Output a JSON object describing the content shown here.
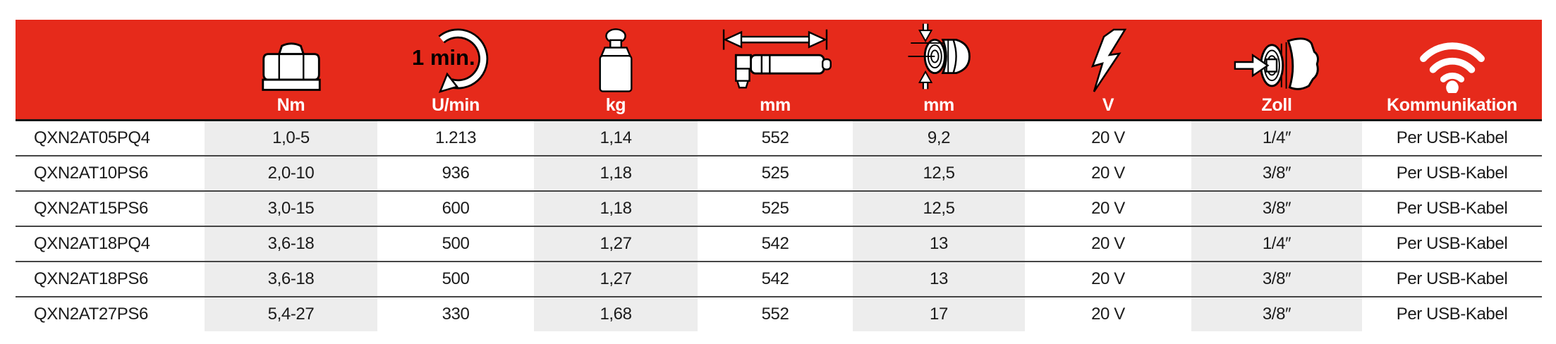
{
  "colors": {
    "header_red": "#e62a1b",
    "shaded_cell": "#ededed",
    "row_border": "#454545",
    "text": "#1b1b1b"
  },
  "rotation_icon_label": "1 min.",
  "table": {
    "columns": [
      {
        "unit": "",
        "icon": ""
      },
      {
        "unit": "Nm",
        "icon": "nut-icon"
      },
      {
        "unit": "U/min",
        "icon": "rotation-1min-icon"
      },
      {
        "unit": "kg",
        "icon": "weight-icon"
      },
      {
        "unit": "mm",
        "icon": "tool-length-icon"
      },
      {
        "unit": "mm",
        "icon": "socket-diameter-icon"
      },
      {
        "unit": "V",
        "icon": "lightning-icon"
      },
      {
        "unit": "Zoll",
        "icon": "square-drive-icon"
      },
      {
        "unit": "Kommunikation",
        "icon": "wifi-icon"
      }
    ],
    "shaded_column_indexes": [
      1,
      3,
      5,
      7
    ],
    "rows": [
      [
        "QXN2AT05PQ4",
        "1,0-5",
        "1.213",
        "1,14",
        "552",
        "9,2",
        "20 V",
        "1/4″",
        "Per USB-Kabel"
      ],
      [
        "QXN2AT10PS6",
        "2,0-10",
        "936",
        "1,18",
        "525",
        "12,5",
        "20 V",
        "3/8″",
        "Per USB-Kabel"
      ],
      [
        "QXN2AT15PS6",
        "3,0-15",
        "600",
        "1,18",
        "525",
        "12,5",
        "20 V",
        "3/8″",
        "Per USB-Kabel"
      ],
      [
        "QXN2AT18PQ4",
        "3,6-18",
        "500",
        "1,27",
        "542",
        "13",
        "20 V",
        "1/4″",
        "Per USB-Kabel"
      ],
      [
        "QXN2AT18PS6",
        "3,6-18",
        "500",
        "1,27",
        "542",
        "13",
        "20 V",
        "3/8″",
        "Per USB-Kabel"
      ],
      [
        "QXN2AT27PS6",
        "5,4-27",
        "330",
        "1,68",
        "552",
        "17",
        "20 V",
        "3/8″",
        "Per USB-Kabel"
      ]
    ]
  }
}
